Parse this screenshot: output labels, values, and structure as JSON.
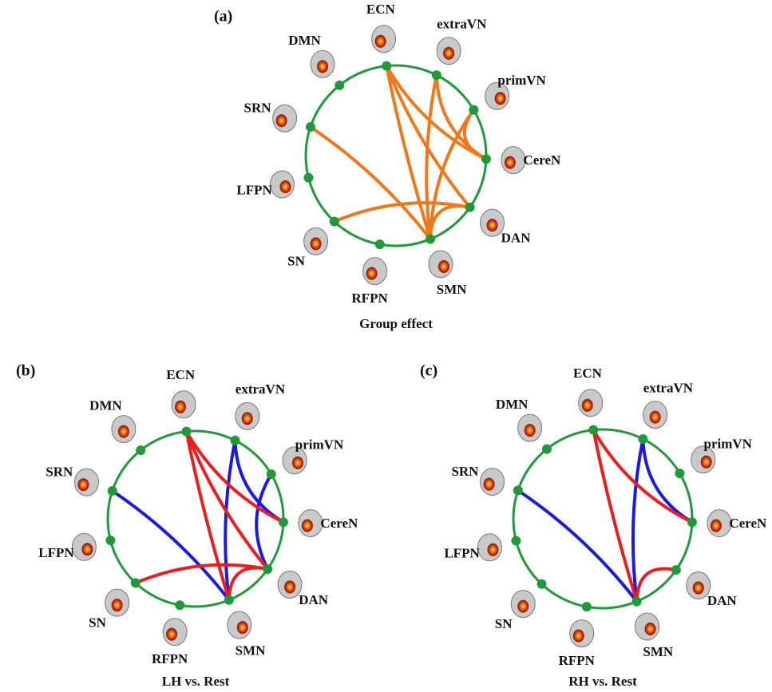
{
  "panels": [
    {
      "label": "(a)",
      "caption": "Group effect",
      "nodes": [
        "ECN",
        "extraVN",
        "primVN",
        "CereN",
        "DAN",
        "SMN",
        "RFPN",
        "SN",
        "LFPN",
        "SRN",
        "DMN"
      ]
    },
    {
      "label": "(b)",
      "caption": "LH vs. Rest",
      "nodes": [
        "ECN",
        "extraVN",
        "primVN",
        "CereN",
        "DAN",
        "SMN",
        "RFPN",
        "SN",
        "LFPN",
        "SRN",
        "DMN"
      ]
    },
    {
      "label": "(c)",
      "caption": "RH vs. Rest",
      "nodes": [
        "ECN",
        "extraVN",
        "primVN",
        "CereN",
        "DAN",
        "SMN",
        "RFPN",
        "SN",
        "LFPN",
        "SRN",
        "DMN"
      ]
    }
  ]
}
